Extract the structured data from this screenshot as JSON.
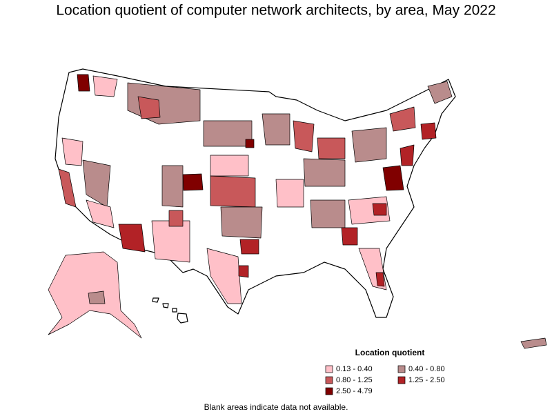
{
  "title": "Location quotient of computer network architects, by area, May 2022",
  "legend": {
    "title": "Location quotient",
    "items": [
      {
        "label": "0.13 - 0.40",
        "color": "#ffc0c8"
      },
      {
        "label": "0.40 - 0.80",
        "color": "#b98c8c"
      },
      {
        "label": "0.80 - 1.25",
        "color": "#c8585a"
      },
      {
        "label": "1.25 - 2.50",
        "color": "#b22226"
      },
      {
        "label": "2.50 - 4.79",
        "color": "#800000"
      }
    ]
  },
  "note": "Blank areas indicate data not available."
}
